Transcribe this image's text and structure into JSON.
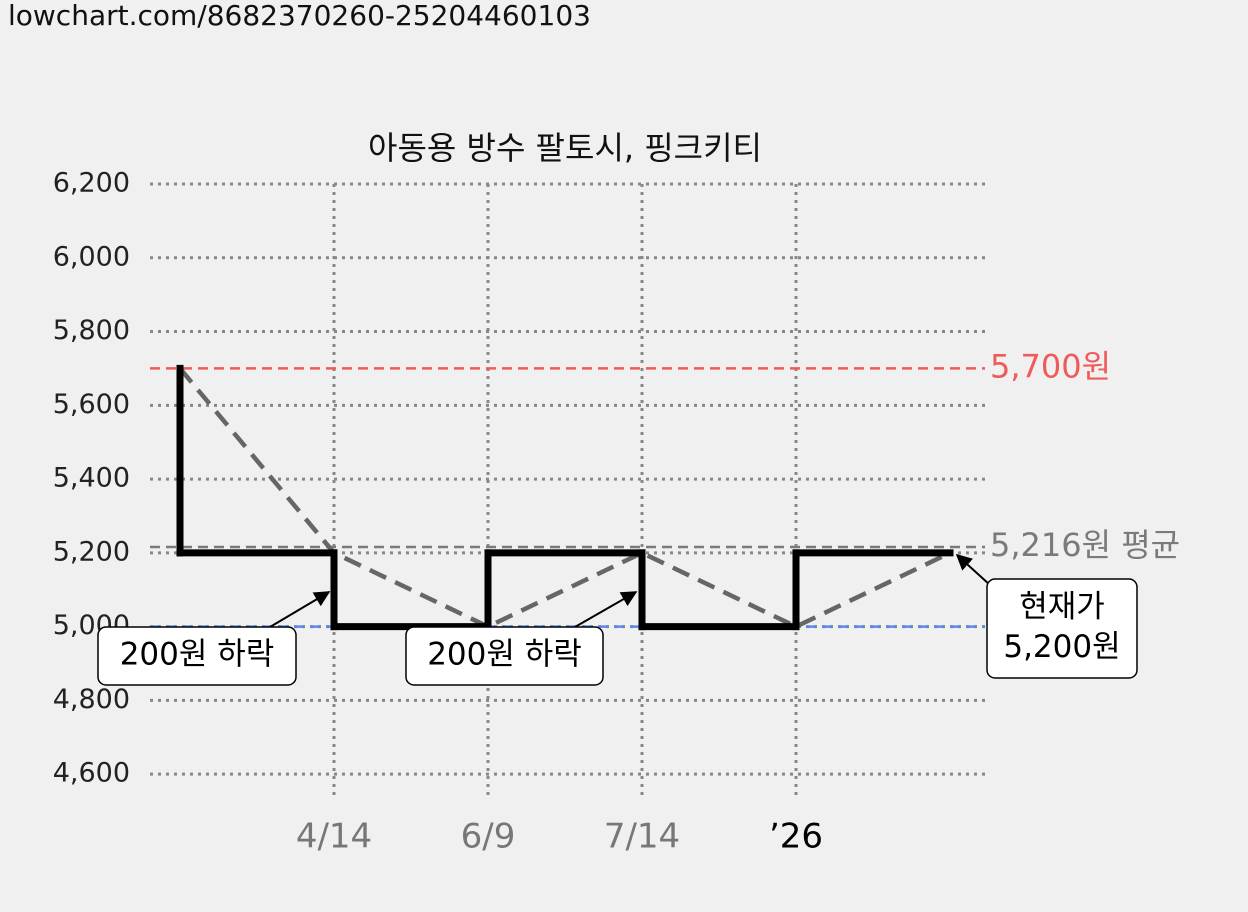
{
  "header": {
    "url": "lowchart.com/8682370260-25204460103"
  },
  "chart_data": {
    "type": "step",
    "title": "아동용 방수 팔토시, 핑크키티",
    "categories": [
      null,
      "4/14",
      "6/9",
      "7/14",
      "’26",
      null
    ],
    "xtick_colors": [
      null,
      "#777777",
      "#777777",
      "#777777",
      "#000000",
      null
    ],
    "values": [
      5700,
      5200,
      5000,
      5200,
      5000,
      5200
    ],
    "color": "#000000",
    "trend_color": "#666666",
    "ylim": [
      4530,
      6200
    ],
    "yticks": [
      {
        "value": 4600,
        "label": "4,600"
      },
      {
        "value": 4800,
        "label": "4,800"
      },
      {
        "value": 5000,
        "label": "5,000"
      },
      {
        "value": 5200,
        "label": "5,200"
      },
      {
        "value": 5400,
        "label": "5,400"
      },
      {
        "value": 5600,
        "label": "5,600"
      },
      {
        "value": 5800,
        "label": "5,800"
      },
      {
        "value": 6000,
        "label": "6,000"
      },
      {
        "value": 6200,
        "label": "6,200"
      }
    ],
    "grid": true,
    "reference_lines": [
      {
        "value": 5700,
        "label": "5,700원",
        "color": "#f05a5a"
      },
      {
        "value": 5216,
        "label": "5,216원 평균",
        "color": "#7a7a7a"
      },
      {
        "value": 5000,
        "color": "#5b87e6"
      }
    ],
    "annotations": [
      {
        "lines": [
          "200원 하락"
        ]
      },
      {
        "lines": [
          "200원 하락"
        ]
      },
      {
        "lines": [
          "현재가",
          "5,200원"
        ]
      }
    ]
  }
}
